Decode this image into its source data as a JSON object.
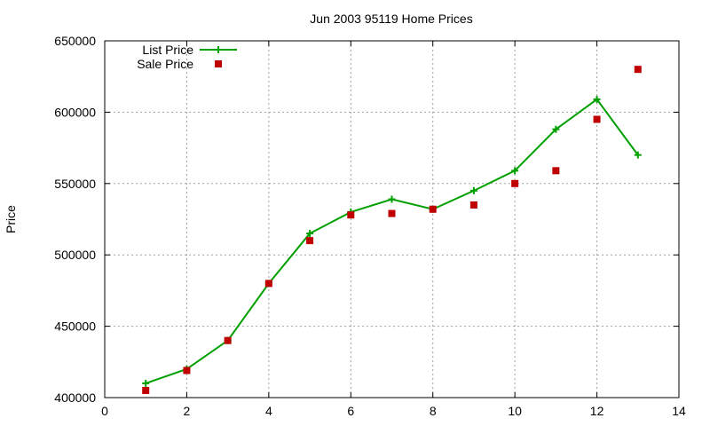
{
  "chart_data": {
    "type": "line",
    "title": "Jun 2003 95119 Home Prices",
    "xlabel": "",
    "ylabel": "Price",
    "xlim": [
      0,
      14
    ],
    "ylim": [
      400000,
      650000
    ],
    "xticks": [
      0,
      2,
      4,
      6,
      8,
      10,
      12,
      14
    ],
    "yticks": [
      400000,
      450000,
      500000,
      550000,
      600000,
      650000
    ],
    "grid": true,
    "legend_position": "top-left",
    "series": [
      {
        "name": "List Price",
        "style": "line-points",
        "color": "#00a000",
        "x": [
          1,
          2,
          3,
          4,
          5,
          6,
          7,
          8,
          9,
          10,
          11,
          12,
          13
        ],
        "values": [
          410000,
          420000,
          440000,
          480000,
          515000,
          530000,
          539000,
          532000,
          545000,
          559000,
          588000,
          609000,
          570000
        ]
      },
      {
        "name": "Sale Price",
        "style": "points",
        "color": "#c00000",
        "x": [
          1,
          2,
          3,
          4,
          5,
          6,
          7,
          8,
          9,
          10,
          11,
          12,
          13
        ],
        "values": [
          405000,
          419000,
          440000,
          480000,
          510000,
          528000,
          529000,
          532000,
          535000,
          550000,
          559000,
          595000,
          630000
        ]
      }
    ]
  }
}
